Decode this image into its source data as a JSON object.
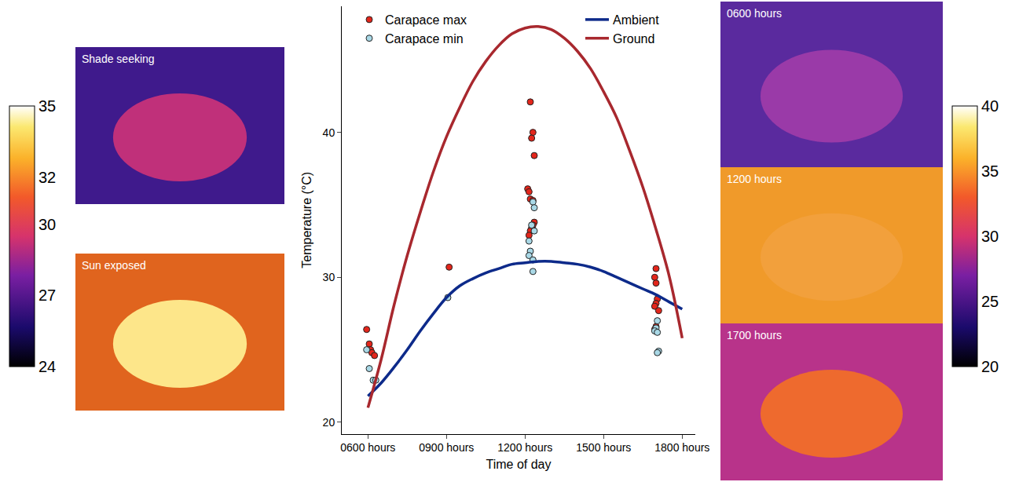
{
  "chart_data": {
    "type": "scatter",
    "x_label": "Time of day",
    "y_label": "Temperature (°C)",
    "xlim": [
      5,
      18.5
    ],
    "xticks": [
      {
        "value": 6,
        "label": "0600 hours"
      },
      {
        "value": 9,
        "label": "0900 hours"
      },
      {
        "value": 12,
        "label": "1200 hours"
      },
      {
        "value": 15,
        "label": "1500 hours"
      },
      {
        "value": 18,
        "label": "1800 hours"
      }
    ],
    "ylim": [
      19.2,
      48.7
    ],
    "yticks": [
      20,
      30,
      40
    ],
    "grid": false,
    "legend": "top",
    "series": [
      {
        "name": "Carapace max",
        "type": "scatter",
        "marker": "circle",
        "color": "#e3261b",
        "x": [
          5.95,
          6.05,
          6.1,
          6.15,
          6.25,
          9.1,
          12.2,
          12.3,
          12.25,
          12.35,
          12.1,
          12.15,
          12.2,
          12.3,
          12.35,
          12.3,
          12.25,
          12.2,
          12.15,
          17.0,
          16.95,
          17.0,
          17.05,
          17.0,
          16.95,
          17.1,
          17.0,
          16.95
        ],
        "values": [
          26.4,
          25.4,
          25.0,
          24.8,
          24.6,
          30.7,
          42.1,
          40.0,
          39.6,
          38.4,
          36.1,
          35.9,
          35.4,
          35.3,
          33.8,
          33.6,
          33.4,
          33.2,
          32.9,
          30.6,
          30.0,
          29.6,
          28.5,
          28.2,
          28.0,
          27.7,
          26.6,
          26.4
        ]
      },
      {
        "name": "Carapace min",
        "type": "scatter",
        "marker": "circle",
        "color": "#a9d8e6",
        "x": [
          5.95,
          6.05,
          6.2,
          6.3,
          9.05,
          12.3,
          12.35,
          12.25,
          12.35,
          12.15,
          12.2,
          12.15,
          12.3,
          12.3,
          17.05,
          17.0,
          16.95,
          17.05,
          17.1,
          17.05
        ],
        "values": [
          25.0,
          23.7,
          22.9,
          22.9,
          28.6,
          35.2,
          34.8,
          33.6,
          33.2,
          32.5,
          31.8,
          31.5,
          31.2,
          30.4,
          27.0,
          26.5,
          26.3,
          26.2,
          24.9,
          24.8
        ]
      },
      {
        "name": "Ambient",
        "type": "line",
        "line_style": "solid",
        "color": "#0d2a8a",
        "x": [
          6,
          6.5,
          7,
          7.5,
          8,
          8.5,
          9,
          9.5,
          10,
          10.5,
          11,
          11.5,
          12,
          12.5,
          13,
          13.5,
          14,
          14.5,
          15,
          15.5,
          16,
          16.5,
          17,
          17.5,
          18
        ],
        "values": [
          21.8,
          22.7,
          23.8,
          25.0,
          26.3,
          27.5,
          28.6,
          29.4,
          29.9,
          30.3,
          30.6,
          30.9,
          31.0,
          31.1,
          31.1,
          31.0,
          30.9,
          30.7,
          30.4,
          30.0,
          29.6,
          29.2,
          28.8,
          28.3,
          27.8
        ]
      },
      {
        "name": "Ground",
        "type": "line",
        "line_style": "solid",
        "color": "#a8282e",
        "x": [
          6,
          6.5,
          7,
          7.5,
          8,
          8.5,
          9,
          9.5,
          10,
          10.5,
          11,
          11.5,
          12,
          12.5,
          13,
          13.5,
          14,
          14.5,
          15,
          15.5,
          16,
          16.5,
          17,
          17.5,
          18
        ],
        "values": [
          21.0,
          24.3,
          28.1,
          31.5,
          34.5,
          37.3,
          39.7,
          41.7,
          43.5,
          44.9,
          46.0,
          46.8,
          47.2,
          47.3,
          47.1,
          46.5,
          45.6,
          44.4,
          42.8,
          41.0,
          38.7,
          36.2,
          33.3,
          30.1,
          25.8
        ]
      }
    ],
    "annotations": [
      "Shade seeking",
      "Sun exposed",
      "0600 hours",
      "1200 hours",
      "1700 hours"
    ],
    "colorbars": [
      {
        "range": [
          24,
          35
        ],
        "ticks": [
          24,
          27,
          30,
          32,
          35
        ]
      },
      {
        "range": [
          20,
          40
        ],
        "ticks": [
          20,
          25,
          30,
          35,
          40
        ]
      }
    ]
  }
}
